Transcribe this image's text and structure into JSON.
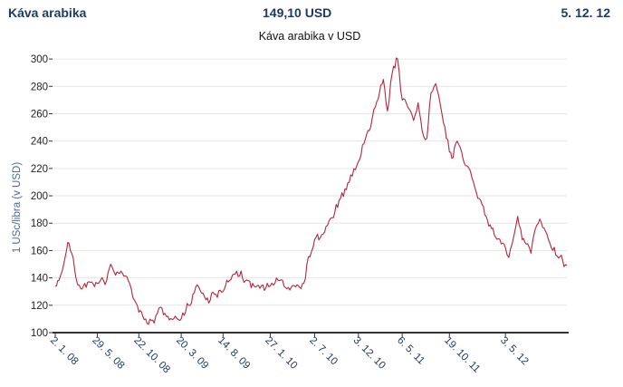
{
  "header": {
    "commodity": "Káva arabika",
    "price": "149,10 USD",
    "date": "5. 12. 12"
  },
  "colors": {
    "line": "#b0283a",
    "header_text": "#1f3a63",
    "grid": "#e6e6e6"
  },
  "chart_data": {
    "type": "line",
    "title": "Káva arabika v USD",
    "ylabel": "1 USc/libra (v USD)",
    "xlabel": "",
    "ylim": [
      100,
      310
    ],
    "yticks": [
      100,
      120,
      140,
      160,
      180,
      200,
      220,
      240,
      260,
      280,
      300
    ],
    "xticks": [
      "2. 1. 08",
      "29. 5. 08",
      "22. 10. 08",
      "20. 3. 09",
      "14. 8. 09",
      "27. 1. 10",
      "2. 7. 10",
      "3. 12. 10",
      "6. 5. 11",
      "19. 10. 11",
      "3. 5. 12"
    ],
    "grid": true,
    "legend": "none",
    "series": [
      {
        "x": [
          "2. 1. 08",
          "15. 1. 08",
          "1. 2. 08",
          "15. 2. 08",
          "29. 2. 08",
          "15. 3. 08",
          "1. 4. 08",
          "15. 4. 08",
          "29. 5. 08",
          "1. 7. 08",
          "15. 7. 08",
          "1. 8. 08",
          "20. 8. 08",
          "15. 9. 08",
          "22. 10. 08",
          "15. 11. 08",
          "15. 12. 08",
          "1. 1. 09",
          "1. 2. 09",
          "20. 3. 09",
          "15. 4. 09",
          "15. 5. 09",
          "15. 6. 09",
          "15. 7. 09",
          "14. 8. 09",
          "1. 9. 09",
          "1. 10. 09",
          "1. 11. 09",
          "1. 12. 09",
          "27. 1. 10",
          "1. 3. 10",
          "1. 4. 10",
          "1. 5. 10",
          "25. 5. 10",
          "5. 6. 10",
          "2. 7. 10",
          "1. 8. 10",
          "1. 9. 10",
          "1. 10. 10",
          "1. 11. 10",
          "3. 12. 10",
          "1. 1. 11",
          "15. 1. 11",
          "1. 2. 11",
          "15. 2. 11",
          "1. 3. 11",
          "15. 3. 11",
          "1. 4. 11",
          "20. 4. 11",
          "6. 5. 11",
          "20. 5. 11",
          "15. 6. 11",
          "1. 7. 11",
          "15. 7. 11",
          "1. 8. 11",
          "15. 8. 11",
          "1. 9. 11",
          "19. 10. 11",
          "1. 11. 11",
          "15. 11. 11",
          "1. 12. 11",
          "15. 12. 11",
          "1. 1. 12",
          "1. 2. 12",
          "1. 3. 12",
          "15. 3. 12",
          "3. 5. 12",
          "15. 5. 12",
          "1. 6. 12",
          "15. 6. 12",
          "1. 7. 12",
          "20. 7. 12",
          "1. 8. 12",
          "15. 8. 12",
          "1. 9. 12",
          "1. 10. 12",
          "1. 11. 12",
          "5. 12. 12"
        ],
        "values": [
          134,
          138,
          150,
          166,
          158,
          140,
          132,
          136,
          136,
          138,
          150,
          142,
          145,
          138,
          115,
          110,
          107,
          118,
          112,
          110,
          120,
          135,
          124,
          128,
          130,
          137,
          145,
          138,
          134,
          134,
          138,
          133,
          135,
          136,
          150,
          168,
          172,
          184,
          198,
          210,
          225,
          245,
          250,
          265,
          275,
          285,
          262,
          290,
          300,
          270,
          268,
          255,
          268,
          248,
          242,
          275,
          282,
          232,
          228,
          240,
          232,
          222,
          218,
          198,
          182,
          176,
          162,
          155,
          170,
          185,
          168,
          165,
          158,
          175,
          183,
          168,
          156,
          149
        ]
      }
    ]
  }
}
